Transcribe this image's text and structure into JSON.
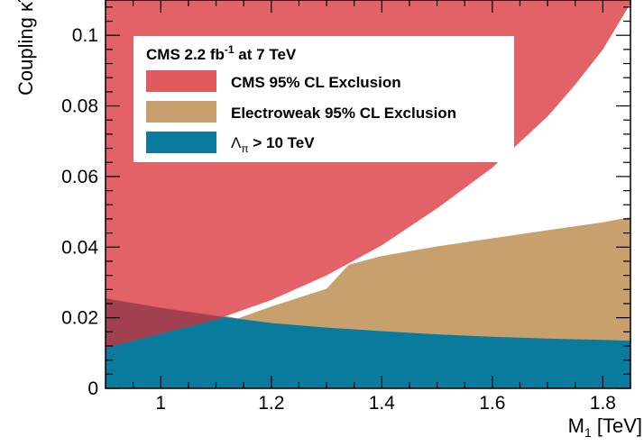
{
  "chart_data": {
    "type": "area",
    "xlabel": "M",
    "xlabel_sub": "1",
    "xlabel_unit": " [TeV]",
    "ylabel": "Coupling",
    "ylabel_symbol": "κ̃",
    "xlim": [
      0.9,
      1.85
    ],
    "ylim": [
      0,
      0.11
    ],
    "x_ticks": [
      1,
      1.2,
      1.4,
      1.6,
      1.8
    ],
    "x_tick_labels": [
      "1",
      "1.2",
      "1.4",
      "1.6",
      "1.8"
    ],
    "y_ticks": [
      0,
      0.02,
      0.04,
      0.06,
      0.08,
      0.1
    ],
    "y_tick_labels": [
      "0",
      "0.02",
      "0.04",
      "0.06",
      "0.08",
      "0.1"
    ],
    "legend": {
      "placement": "top-left",
      "title": "CMS 2.2 fb",
      "title_sup": "-1",
      "title_suffix": " at 7 TeV"
    },
    "series": [
      {
        "name": "CMS 95% CL Exclusion",
        "color": "#e05a60",
        "opacity": 0.95,
        "fill": "above",
        "x": [
          0.9,
          1.0,
          1.1,
          1.2,
          1.3,
          1.4,
          1.5,
          1.6,
          1.7,
          1.75,
          1.8,
          1.85
        ],
        "y": [
          0.0115,
          0.0155,
          0.0195,
          0.025,
          0.032,
          0.0405,
          0.051,
          0.0625,
          0.077,
          0.086,
          0.096,
          0.109
        ]
      },
      {
        "name": "Electroweak 95% CL Exclusion",
        "color": "#c8a06e",
        "opacity": 1.0,
        "fill": "below",
        "x": [
          0.9,
          1.0,
          1.1,
          1.14,
          1.2,
          1.3,
          1.34,
          1.4,
          1.5,
          1.6,
          1.7,
          1.8,
          1.85
        ],
        "y": [
          0.0255,
          0.023,
          0.021,
          0.0198,
          0.0232,
          0.0282,
          0.035,
          0.0375,
          0.0402,
          0.0425,
          0.0448,
          0.047,
          0.0485
        ]
      },
      {
        "name": "Λ",
        "name_sub": "π",
        "name_suffix": " > 10 TeV",
        "color": "#0a7b9c",
        "opacity": 1.0,
        "fill": "below",
        "x": [
          0.9,
          1.0,
          1.1,
          1.2,
          1.3,
          1.4,
          1.5,
          1.6,
          1.7,
          1.8,
          1.85
        ],
        "y": [
          0.0255,
          0.0228,
          0.0205,
          0.0185,
          0.0172,
          0.0162,
          0.0153,
          0.0146,
          0.0141,
          0.0137,
          0.0135
        ]
      }
    ],
    "overlap_color": "#a24050"
  }
}
